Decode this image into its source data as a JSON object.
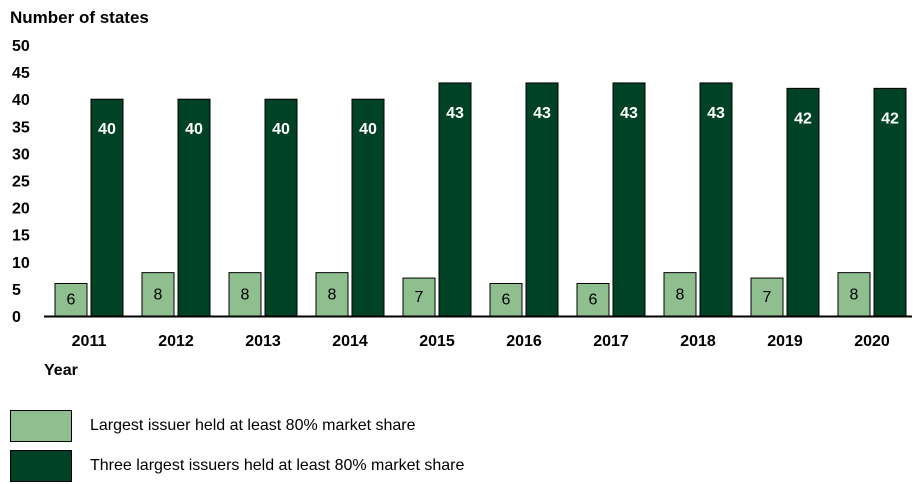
{
  "chart_data": {
    "type": "bar",
    "ylabel": "Number of states",
    "xlabel": "Year",
    "ylim": [
      0,
      50
    ],
    "yticks": [
      0,
      5,
      10,
      15,
      20,
      25,
      30,
      35,
      40,
      45,
      50
    ],
    "categories": [
      "2011",
      "2012",
      "2013",
      "2014",
      "2015",
      "2016",
      "2017",
      "2018",
      "2019",
      "2020"
    ],
    "series": [
      {
        "name": "Largest issuer held at least 80% market share",
        "values": [
          6,
          8,
          8,
          8,
          7,
          6,
          6,
          8,
          7,
          8
        ],
        "color": "#8fbf8f",
        "label_color": "#000000"
      },
      {
        "name": "Three largest issuers held at least 80% market share",
        "values": [
          40,
          40,
          40,
          40,
          43,
          43,
          43,
          43,
          42,
          42
        ],
        "color": "#004225",
        "label_color": "#ffffff"
      }
    ],
    "grid": false,
    "legend_position": "bottom-left"
  }
}
